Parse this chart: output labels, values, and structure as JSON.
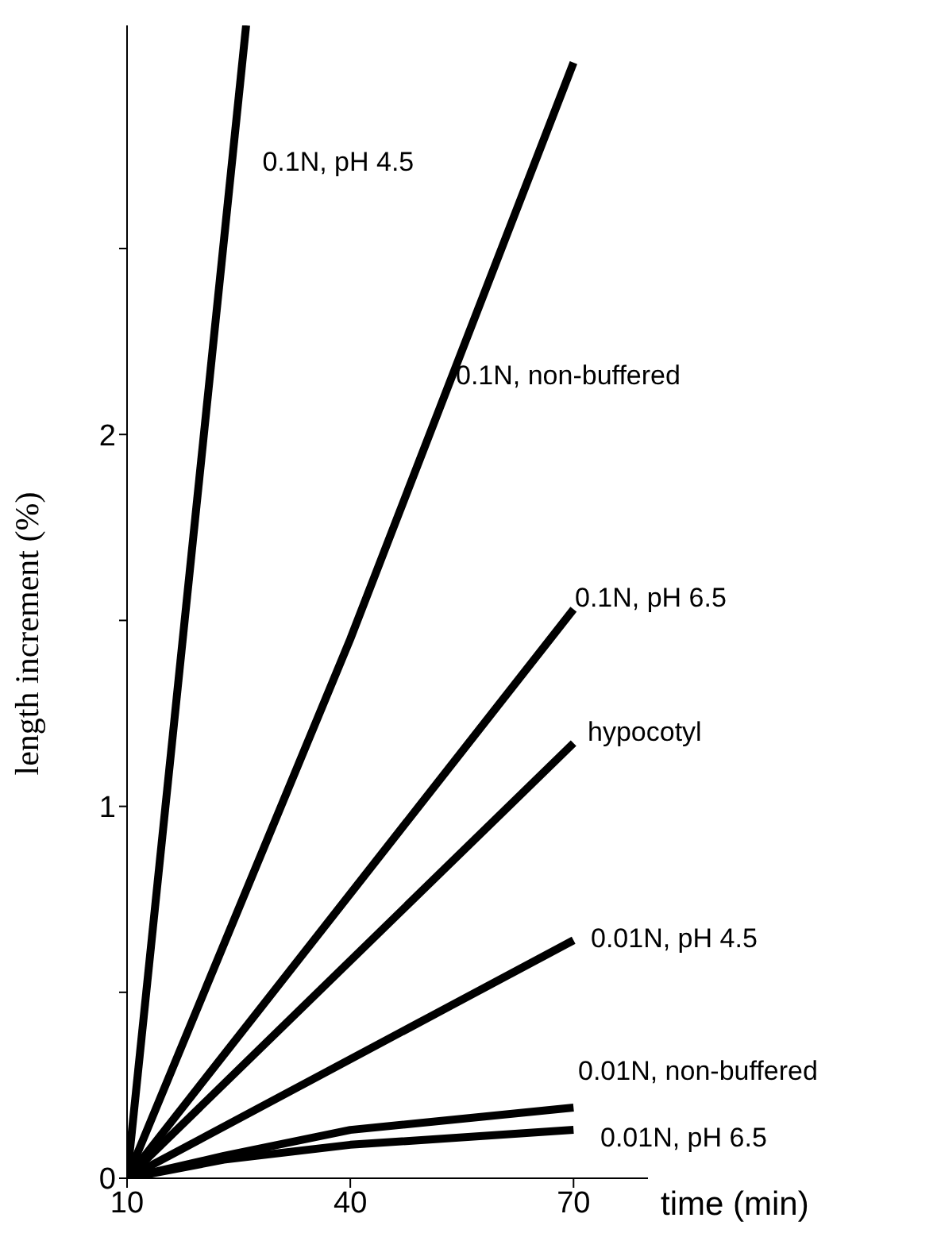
{
  "chart_data": {
    "type": "line",
    "xlabel": "time (min)",
    "ylabel": "length increment (%)",
    "xlim": [
      10,
      80
    ],
    "xticks": [
      10,
      40,
      70
    ],
    "ylim": [
      0,
      3.1
    ],
    "yticks": [
      0,
      {
        "value": 0.5,
        "label": null
      },
      1,
      {
        "value": 1.5,
        "label": null
      },
      2,
      {
        "value": 2.5,
        "label": null
      }
    ],
    "grid": false,
    "legend": false,
    "marker": "none",
    "line_style": "solid",
    "series": [
      {
        "name": "0.1N, pH 4.5",
        "color": "#000000",
        "x": [
          10,
          26
        ],
        "values": [
          0,
          3.1
        ]
      },
      {
        "name": "0.1N, non-buffered",
        "color": "#000000",
        "x": [
          10,
          40,
          70
        ],
        "values": [
          0,
          1.45,
          3.0
        ]
      },
      {
        "name": "0.1N, pH 6.5",
        "color": "#000000",
        "x": [
          10,
          70
        ],
        "values": [
          0,
          1.53
        ]
      },
      {
        "name": "hypocotyl",
        "color": "#000000",
        "x": [
          10,
          70
        ],
        "values": [
          0,
          1.17
        ]
      },
      {
        "name": "0.01N, pH 4.5",
        "color": "#000000",
        "x": [
          10,
          70
        ],
        "values": [
          0,
          0.64
        ]
      },
      {
        "name": "0.01N, non-buffered",
        "color": "#000000",
        "x": [
          10,
          23,
          40,
          70
        ],
        "values": [
          0,
          0.06,
          0.13,
          0.19
        ]
      },
      {
        "name": "0.01N, pH 6.5",
        "color": "#000000",
        "x": [
          10,
          23,
          40,
          70
        ],
        "values": [
          0,
          0.05,
          0.09,
          0.13
        ]
      }
    ]
  }
}
